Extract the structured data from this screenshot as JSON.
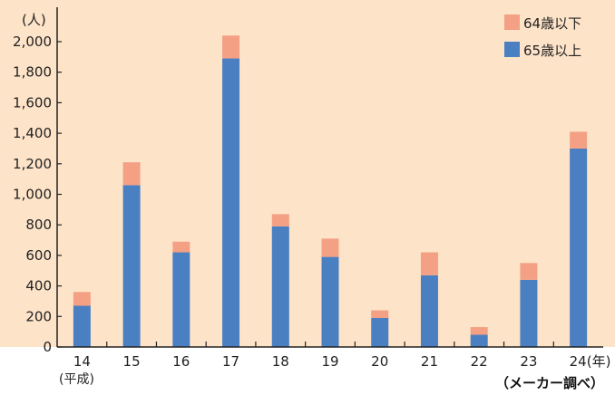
{
  "chart_data": {
    "type": "bar",
    "stacked": true,
    "categories": [
      "14",
      "15",
      "16",
      "17",
      "18",
      "19",
      "20",
      "21",
      "22",
      "23",
      "24"
    ],
    "x_suffix_last": "(年)",
    "x_era_label": "(平成)",
    "y_unit": "(人)",
    "ylim": [
      0,
      2000
    ],
    "y_ticks": [
      0,
      200,
      400,
      600,
      800,
      "1,000",
      "1,200",
      "1,400",
      "1,600",
      "1,800",
      "2,000"
    ],
    "y_tick_values": [
      0,
      200,
      400,
      600,
      800,
      1000,
      1200,
      1400,
      1600,
      1800,
      2000
    ],
    "series": [
      {
        "name": "65歳以上",
        "color": "#4a7fc1",
        "values": [
          270,
          1060,
          620,
          1890,
          790,
          590,
          190,
          470,
          80,
          440,
          1300
        ]
      },
      {
        "name": "64歳以下",
        "color": "#f4a084",
        "values": [
          90,
          150,
          70,
          150,
          80,
          120,
          50,
          150,
          50,
          110,
          110
        ]
      }
    ],
    "legend_order": [
      "64歳以下",
      "65歳以上"
    ],
    "legend_position": "top-right",
    "source": "（メーカー調べ）",
    "plot_background": "#fde3c8",
    "grid": false
  }
}
